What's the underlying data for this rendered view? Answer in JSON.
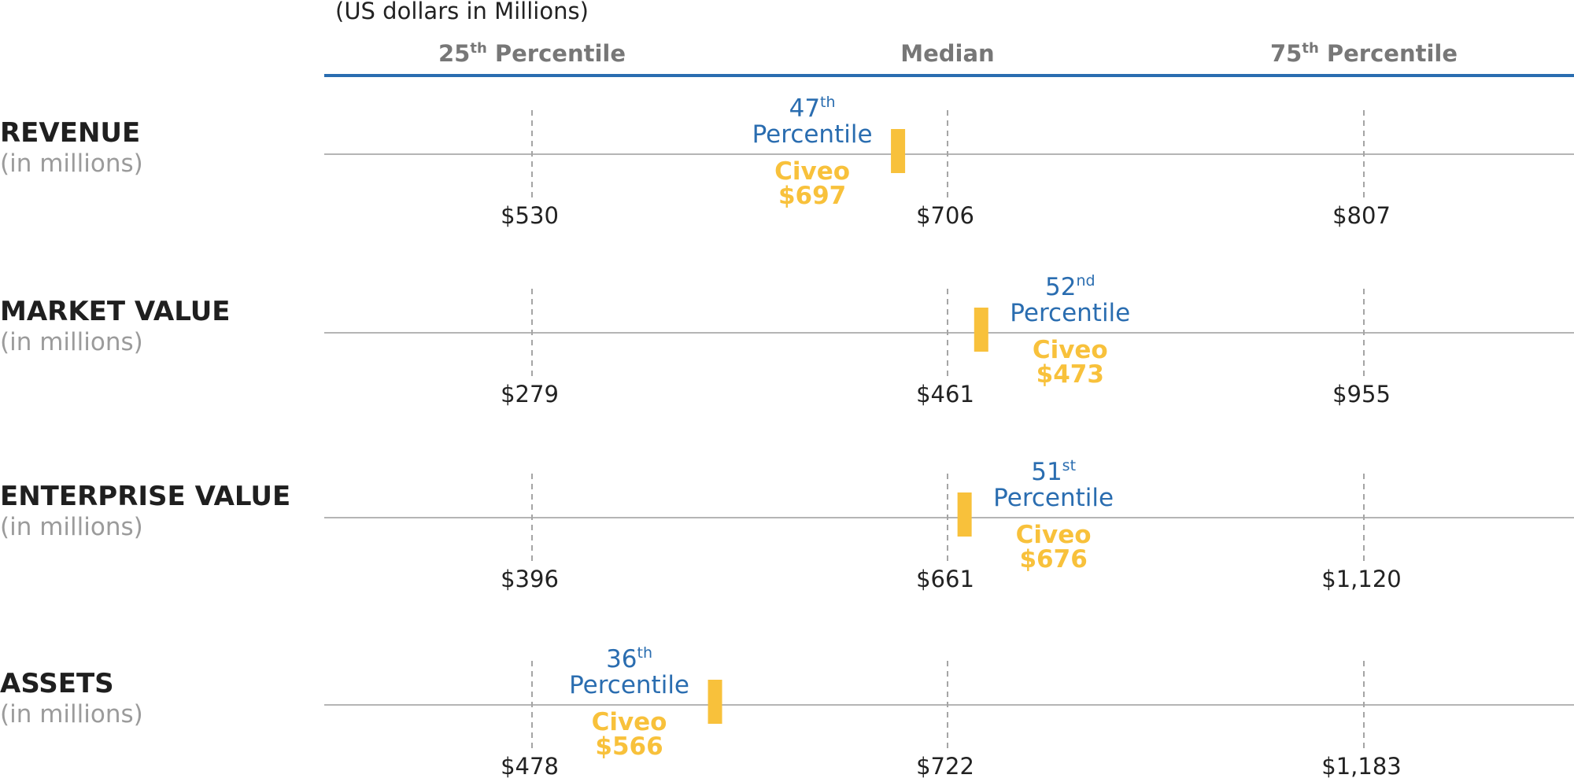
{
  "chart_data": {
    "type": "dot",
    "note": "(US dollars in Millions)",
    "columns": [
      {
        "name": "25",
        "suffix": "th",
        "label": "Percentile"
      },
      {
        "name": "Median",
        "suffix": "",
        "label": ""
      },
      {
        "name": "75",
        "suffix": "th",
        "label": "Percentile"
      }
    ],
    "rows": [
      {
        "metric": "REVENUE",
        "unit": "(in millions)",
        "p25": "$530",
        "median": "$706",
        "p75": "$807",
        "value": 697,
        "percentile": 47,
        "percentile_num": "47",
        "percentile_suffix": "th",
        "percentile_label": "Percentile",
        "company": "Civeo",
        "value_label": "$697"
      },
      {
        "metric": "MARKET VALUE",
        "unit": "(in millions)",
        "p25": "$279",
        "median": "$461",
        "p75": "$955",
        "value": 473,
        "percentile": 52,
        "percentile_num": "52",
        "percentile_suffix": "nd",
        "percentile_label": "Percentile",
        "company": "Civeo",
        "value_label": "$473"
      },
      {
        "metric": "ENTERPRISE VALUE",
        "unit": "(in millions)",
        "p25": "$396",
        "median": "$661",
        "p75": "$1,120",
        "value": 676,
        "percentile": 51,
        "percentile_num": "51",
        "percentile_suffix": "st",
        "percentile_label": "Percentile",
        "company": "Civeo",
        "value_label": "$676"
      },
      {
        "metric": "ASSETS",
        "unit": "(in millions)",
        "p25": "$478",
        "median": "$722",
        "p75": "$1,183",
        "value": 566,
        "percentile": 36,
        "percentile_num": "36",
        "percentile_suffix": "th",
        "percentile_label": "Percentile",
        "company": "Civeo",
        "value_label": "$566"
      }
    ],
    "colors": {
      "header_rule": "#2a6db0",
      "axis_line": "#b5b5b5",
      "dashed": "#a5a5a5",
      "marker": "#f8c13b",
      "percentile_text": "#2a6db0",
      "company_text": "#f8c13b"
    }
  }
}
